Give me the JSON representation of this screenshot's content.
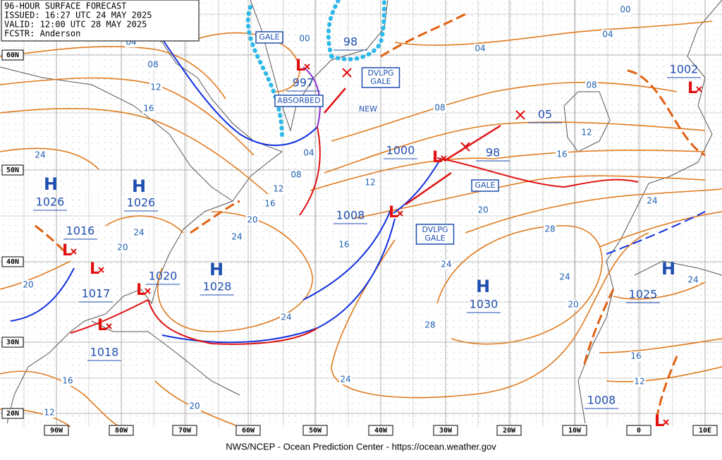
{
  "header": {
    "lines": [
      "96-HOUR SURFACE FORECAST",
      "ISSUED: 16:27 UTC 24 MAY 2025",
      "VALID: 12:00 UTC 28 MAY 2025",
      "FCSTR: Anderson"
    ]
  },
  "footer": "NWS/NCEP - Ocean Prediction Center - https://ocean.weather.gov",
  "lat_labels": [
    "60N",
    "50N",
    "40N",
    "30N",
    "20N"
  ],
  "lon_labels": [
    "90W",
    "80W",
    "70W",
    "60W",
    "50W",
    "40W",
    "30W",
    "20W",
    "10W",
    "0",
    "10E"
  ],
  "high_symbol": "H",
  "low_symbol": "L",
  "high_pressures": [
    "1026",
    "1026",
    "1028",
    "1030",
    "1025"
  ],
  "low_pressures": [
    "997",
    "1000",
    "98",
    "98",
    "1002",
    "05",
    "1008",
    "1016",
    "1017",
    "1020",
    "1018",
    "1008"
  ],
  "isobar_labels": [
    "00",
    "04",
    "04",
    "04",
    "08",
    "12",
    "16",
    "24",
    "08",
    "12",
    "16",
    "08",
    "04",
    "08",
    "12",
    "16",
    "12",
    "20",
    "24",
    "24",
    "20",
    "20",
    "16",
    "20",
    "24",
    "28",
    "24",
    "24",
    "20",
    "24",
    "28",
    "24",
    "24",
    "16",
    "12",
    "16",
    "12",
    "20",
    "00"
  ],
  "annotations": [
    "GALE",
    "DVLPG GALE",
    "ABSORBED",
    "NEW",
    "GALE",
    "DVLPG GALE"
  ]
}
